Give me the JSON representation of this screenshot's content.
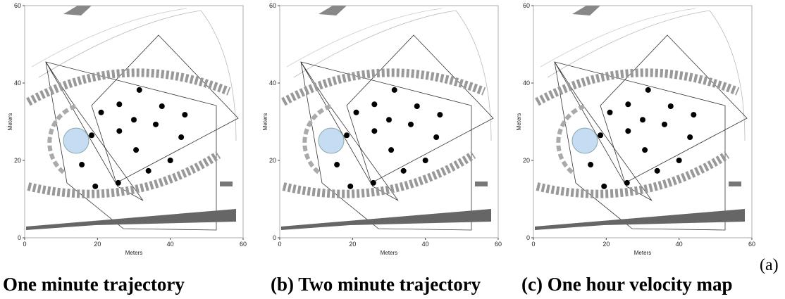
{
  "panel_label": "(a)",
  "chart_data": [
    {
      "type": "scatter",
      "caption": "One minute trajectory",
      "xlabel": "Meters",
      "ylabel": "Meters",
      "xlim": [
        0,
        60
      ],
      "ylim": [
        0,
        60
      ],
      "xticks": [
        0,
        20,
        40,
        60
      ],
      "yticks": [
        0,
        20,
        40,
        60
      ],
      "x": [
        31.5,
        26,
        37.7,
        44,
        21,
        30,
        36,
        18.4,
        26,
        43,
        30.6,
        40,
        15.7,
        34,
        25.7,
        19.4
      ],
      "y": [
        38.2,
        34.5,
        34,
        31.8,
        32.4,
        30.5,
        29.3,
        26.5,
        27.6,
        26,
        22.7,
        20,
        18.9,
        17.3,
        14.2,
        13.3
      ]
    },
    {
      "type": "scatter",
      "caption": "(b) Two minute trajectory",
      "xlabel": "Meters",
      "ylabel": "Meters",
      "xlim": [
        0,
        60
      ],
      "ylim": [
        0,
        60
      ],
      "xticks": [
        0,
        20,
        40,
        60
      ],
      "yticks": [
        0,
        20,
        40,
        60
      ],
      "x": [
        31.5,
        26,
        37.7,
        44,
        21,
        30,
        36,
        18.4,
        26,
        43,
        30.6,
        40,
        15.7,
        34,
        25.7,
        19.4
      ],
      "y": [
        38.2,
        34.5,
        34,
        31.8,
        32.4,
        30.5,
        29.3,
        26.5,
        27.6,
        26,
        22.7,
        20,
        18.9,
        17.3,
        14.2,
        13.3
      ]
    },
    {
      "type": "scatter",
      "caption": "(c) One hour velocity map",
      "xlabel": "Meters",
      "ylabel": "Meters",
      "xlim": [
        0,
        60
      ],
      "ylim": [
        0,
        60
      ],
      "xticks": [
        0,
        20,
        40,
        60
      ],
      "yticks": [
        0,
        20,
        40,
        60
      ],
      "x": [
        31.5,
        26,
        37.7,
        44,
        21,
        30,
        36,
        18.4,
        26,
        43,
        30.6,
        40,
        15.7,
        34,
        25.7,
        19.4
      ],
      "y": [
        38.2,
        34.5,
        34,
        31.8,
        32.4,
        30.5,
        29.3,
        26.5,
        27.6,
        26,
        22.7,
        20,
        18.9,
        17.3,
        14.2,
        13.3
      ]
    }
  ]
}
